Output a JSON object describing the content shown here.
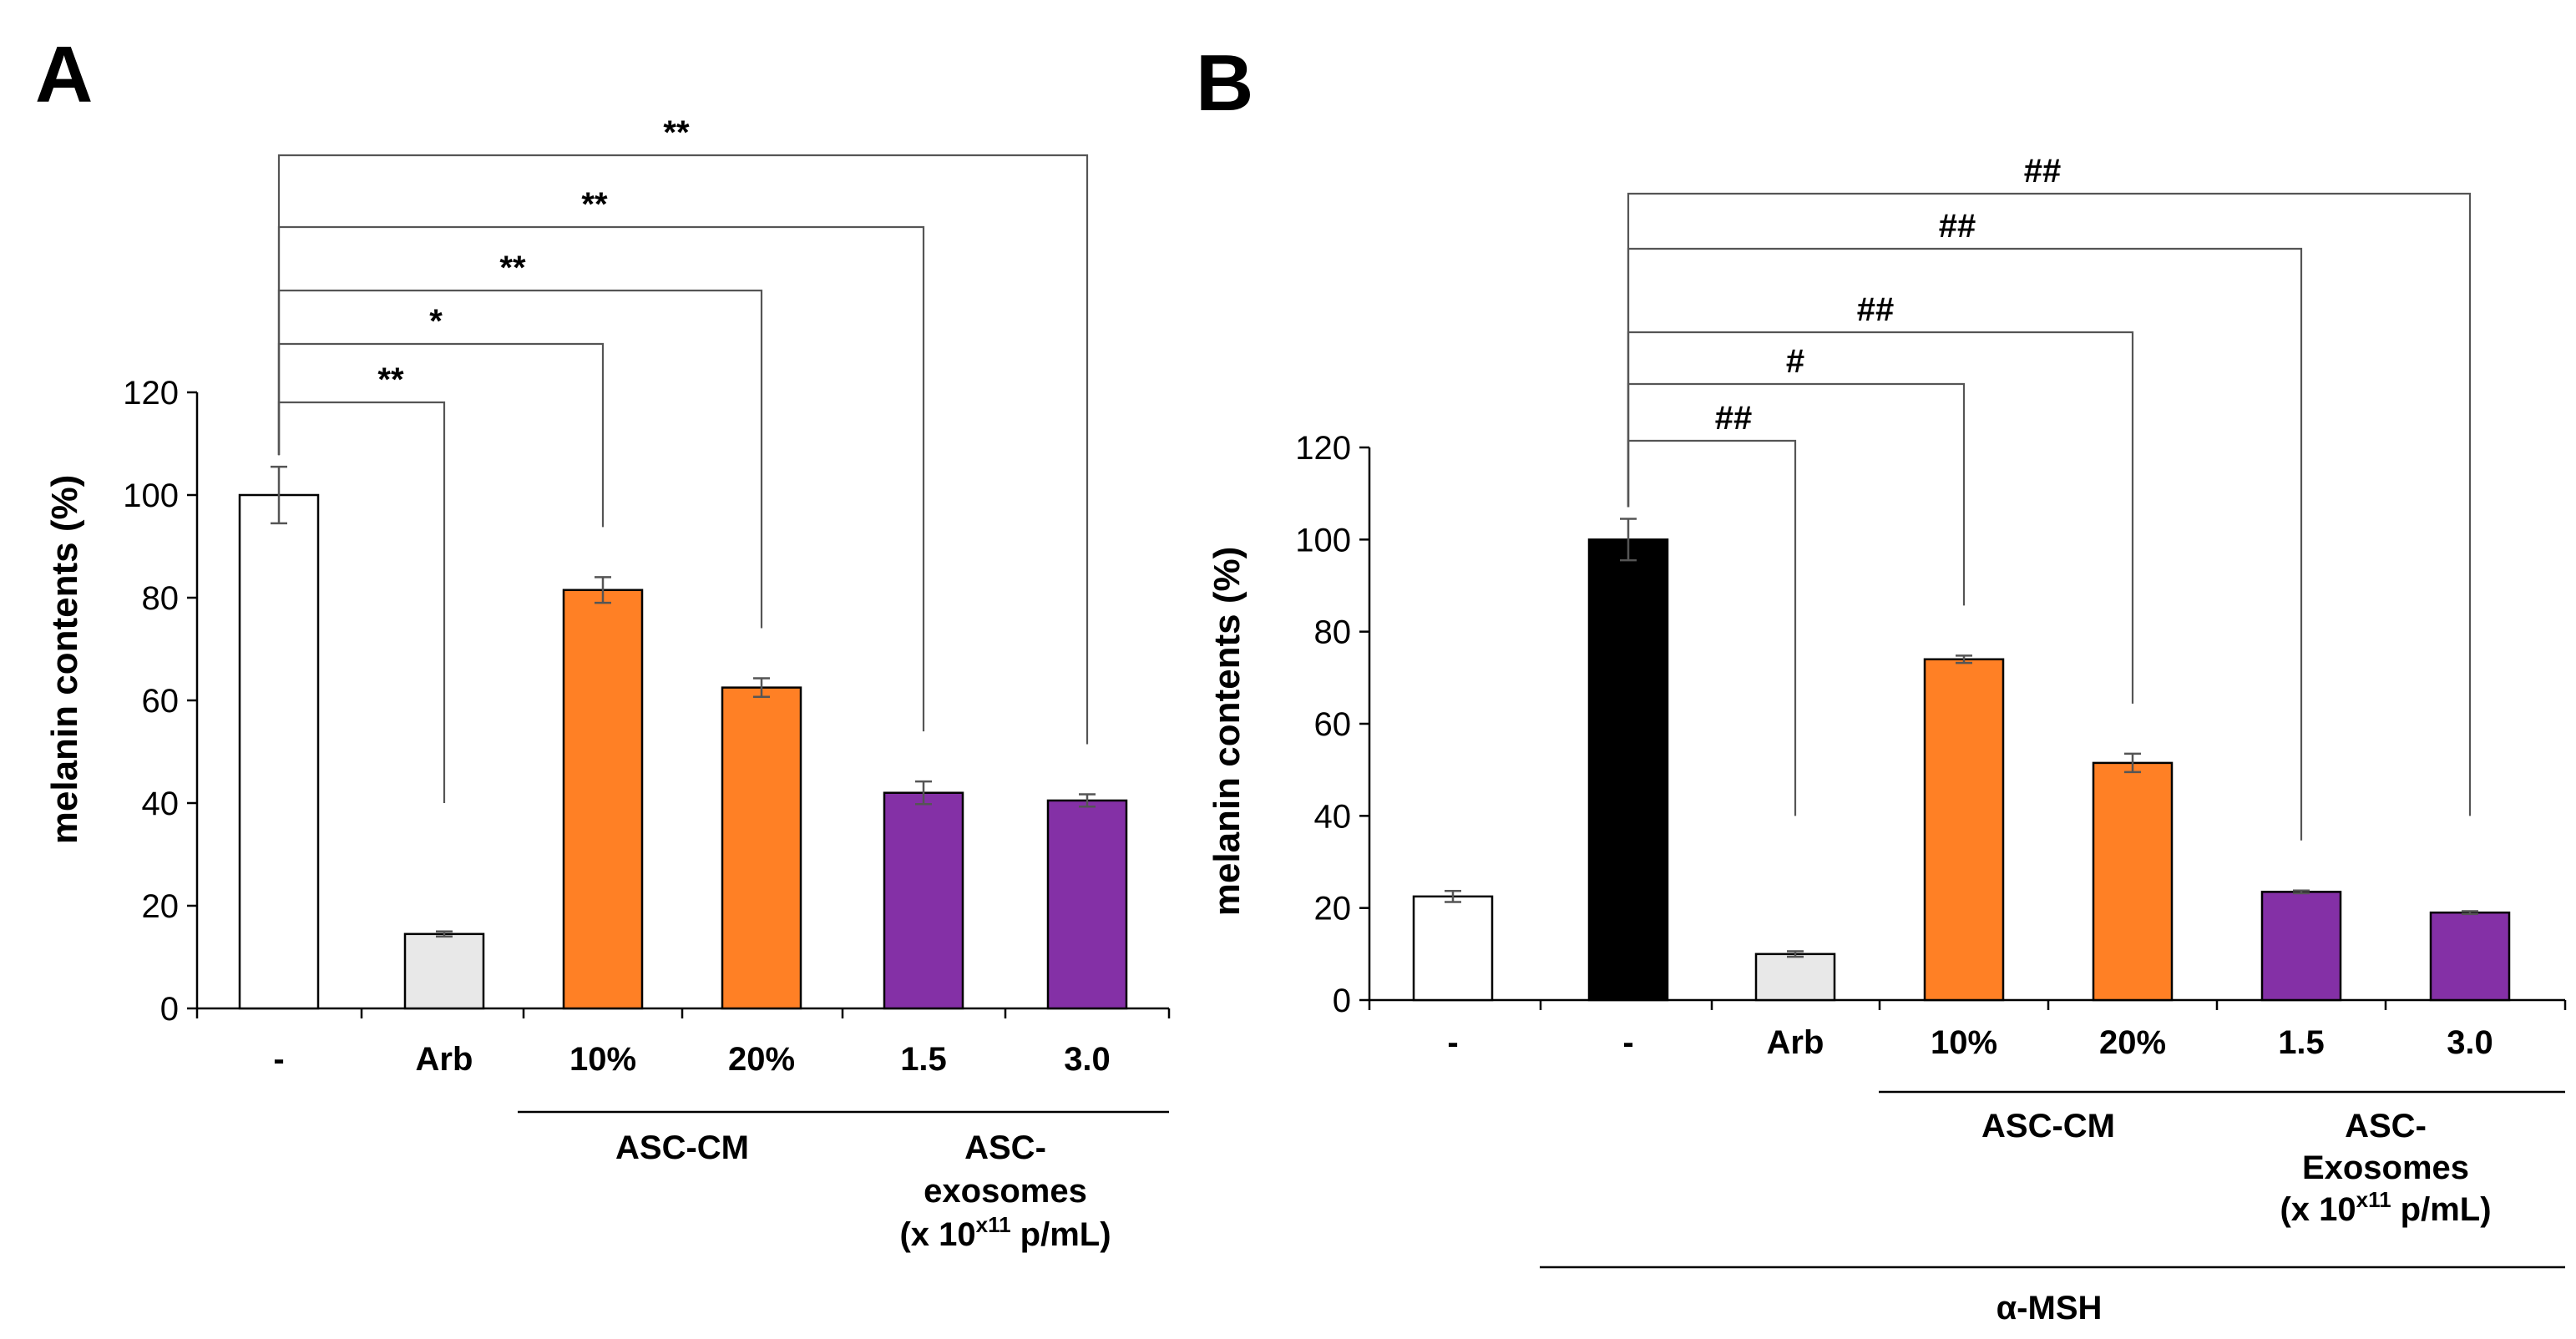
{
  "chart_data": [
    {
      "panel": "A",
      "type": "bar",
      "ylabel": "melanin contents (%)",
      "ylim": [
        0,
        120
      ],
      "yticks": [
        0,
        20,
        40,
        60,
        80,
        100,
        120
      ],
      "categories": [
        "-",
        "Arb",
        "10%",
        "20%",
        "1.5",
        "3.0"
      ],
      "values": [
        100,
        14.5,
        81.5,
        62.5,
        42,
        40.5
      ],
      "errors": [
        5.5,
        0.5,
        2.5,
        1.8,
        2.2,
        1.2
      ],
      "colors": [
        "#ffffff",
        "#e8e8e8",
        "#ff8025",
        "#ff8025",
        "#8430a6",
        "#8430a6"
      ],
      "groups": [
        {
          "label_lines": [
            "ASC-CM"
          ],
          "from": 2,
          "to": 3
        },
        {
          "label_lines": [
            "ASC-",
            "exosomes",
            "(x 10"
          ],
          "superscript": "x11",
          "tail": " p/mL)",
          "from": 4,
          "to": 5
        }
      ],
      "significance": [
        {
          "from": 0,
          "to": 1,
          "label": "**"
        },
        {
          "from": 0,
          "to": 2,
          "label": "*"
        },
        {
          "from": 0,
          "to": 3,
          "label": "**"
        },
        {
          "from": 0,
          "to": 4,
          "label": "**"
        },
        {
          "from": 0,
          "to": 5,
          "label": "**"
        }
      ]
    },
    {
      "panel": "B",
      "type": "bar",
      "ylabel": "melanin contents (%)",
      "ylim": [
        0,
        120
      ],
      "yticks": [
        0,
        20,
        40,
        60,
        80,
        100,
        120
      ],
      "categories": [
        "-",
        "-",
        "Arb",
        "10%",
        "20%",
        "1.5",
        "3.0"
      ],
      "values": [
        22.5,
        100,
        10,
        74,
        51.5,
        23.5,
        19
      ],
      "errors": [
        1.2,
        4.5,
        0.6,
        0.8,
        2,
        0.3,
        0.3
      ],
      "colors": [
        "#ffffff",
        "#000000",
        "#e8e8e8",
        "#ff8025",
        "#ff8025",
        "#8430a6",
        "#8430a6"
      ],
      "groups": [
        {
          "label_lines": [
            "ASC-CM"
          ],
          "from": 3,
          "to": 4
        },
        {
          "label_lines": [
            "ASC-",
            "Exosomes",
            "(x 10"
          ],
          "superscript": "x11",
          "tail": " p/mL)",
          "from": 5,
          "to": 6
        },
        {
          "label_lines": [
            "α-MSH"
          ],
          "from": 1,
          "to": 6
        }
      ],
      "significance": [
        {
          "from": 1,
          "to": 2,
          "label": "##"
        },
        {
          "from": 1,
          "to": 3,
          "label": "#"
        },
        {
          "from": 1,
          "to": 4,
          "label": "##"
        },
        {
          "from": 1,
          "to": 5,
          "label": "##"
        },
        {
          "from": 1,
          "to": 6,
          "label": "##"
        }
      ]
    }
  ]
}
